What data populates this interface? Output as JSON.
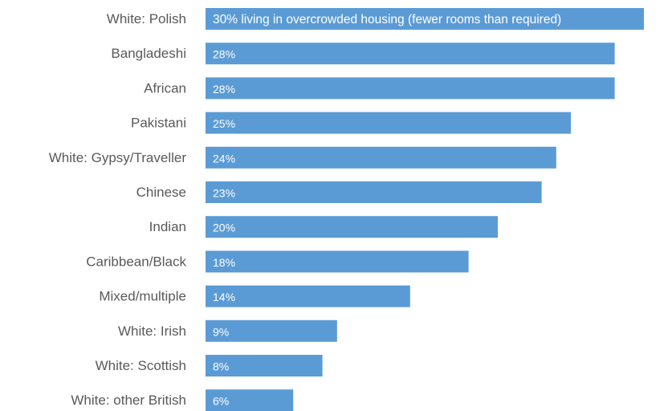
{
  "chart_data": {
    "type": "bar",
    "orientation": "horizontal",
    "title": "",
    "xlabel": "",
    "ylabel": "",
    "xlim": [
      0,
      30
    ],
    "grid": false,
    "legend": "none",
    "bar_color": "#5b9bd5",
    "categories": [
      "White: Polish",
      "Bangladeshi",
      "African",
      "Pakistani",
      "White: Gypsy/Traveller",
      "Chinese",
      "Indian",
      "Caribbean/Black",
      "Mixed/multiple",
      "White: Irish",
      "White: Scottish",
      "White: other British"
    ],
    "values": [
      30,
      28,
      28,
      25,
      24,
      23,
      20,
      18,
      14,
      9,
      8,
      6
    ],
    "data_labels": [
      "30% living in overcrowded housing (fewer rooms than required)",
      "28%",
      "28%",
      "25%",
      "24%",
      "23%",
      "20%",
      "18%",
      "14%",
      "9%",
      "8%",
      "6%"
    ]
  }
}
